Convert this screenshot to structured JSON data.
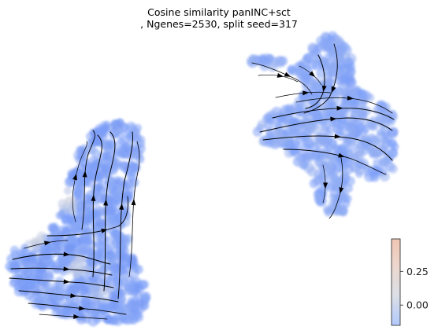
{
  "chart_data": {
    "type": "scatter",
    "title_line1": "Cosine similarity panINC+sct",
    "title_line2": ", Ngenes=2530, split seed=317",
    "xlabel": "",
    "ylabel": "",
    "axes_visible": false,
    "grid": false,
    "colormap": "coolwarm",
    "colorbar": {
      "ticks": [
        0.25,
        0.0
      ],
      "tick_labels": [
        "0.25",
        "0.00"
      ],
      "range": [
        -0.15,
        0.49
      ],
      "location": "bottom-right"
    },
    "overlay": "velocity streamlines (black arrows)",
    "clusters": [
      {
        "name": "left-cluster",
        "dominant_value": -0.08,
        "local_highs": [
          0.18,
          0.22,
          0.15,
          0.1
        ]
      },
      {
        "name": "upper-right-cluster",
        "dominant_value": -0.05,
        "local_highs": []
      }
    ]
  }
}
